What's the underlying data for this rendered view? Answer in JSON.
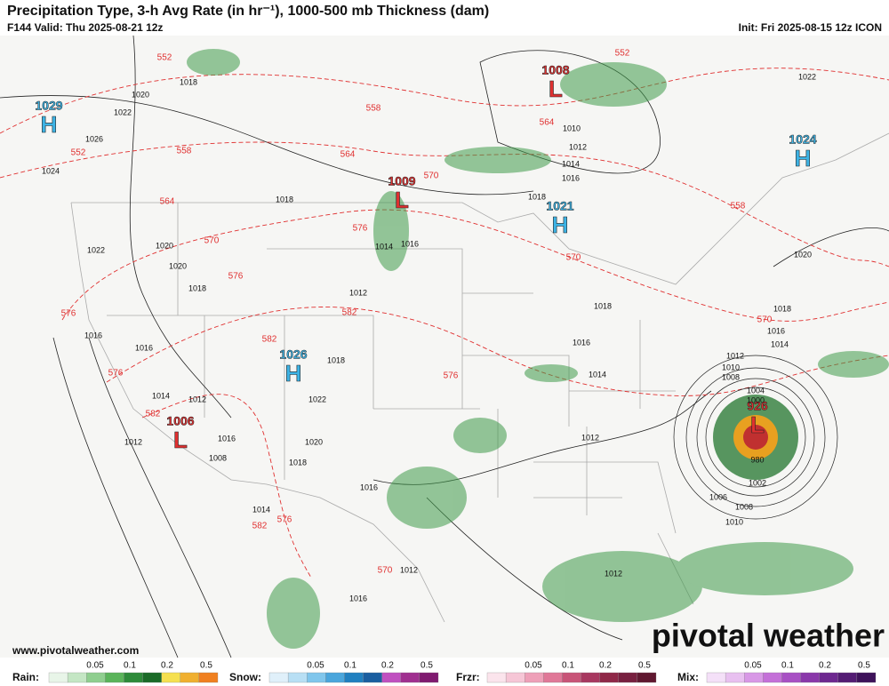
{
  "header": {
    "title": "Precipitation Type, 3-h Avg Rate (in hr⁻¹), 1000-500 mb Thickness (dam)",
    "valid": "F144 Valid: Thu 2025-08-21 12z",
    "init": "Init: Fri 2025-08-15 12z ICON"
  },
  "centers": [
    {
      "letter": "H",
      "value": "1029"
    },
    {
      "letter": "L",
      "value": "1008"
    },
    {
      "letter": "H",
      "value": "1024"
    },
    {
      "letter": "L",
      "value": "1009"
    },
    {
      "letter": "H",
      "value": "1021"
    },
    {
      "letter": "H",
      "value": "1026"
    },
    {
      "letter": "L",
      "value": "1006"
    },
    {
      "letter": "L",
      "value": "926"
    }
  ],
  "isobar_labels": [
    "1018",
    "1020",
    "1022",
    "1026",
    "1024",
    "1010",
    "1012",
    "1014",
    "1016",
    "1018",
    "1022",
    "1018",
    "1020",
    "1022",
    "1020",
    "1018",
    "1016",
    "1014",
    "1012",
    "1018",
    "1016",
    "1016",
    "1018",
    "1016",
    "1014",
    "1014",
    "1012",
    "1022",
    "1012",
    "1016",
    "1008",
    "1020",
    "1018",
    "1016",
    "1014",
    "1012",
    "1012",
    "1016",
    "1012",
    "1020",
    "1018",
    "1016",
    "1014",
    "1012",
    "1010",
    "1008",
    "1004",
    "1000",
    "1006",
    "1008",
    "1010",
    "1002",
    "980"
  ],
  "thickness_labels": [
    "552",
    "552",
    "558",
    "552",
    "558",
    "564",
    "564",
    "570",
    "564",
    "570",
    "576",
    "576",
    "570",
    "558",
    "570",
    "582",
    "576",
    "582",
    "576",
    "576",
    "582",
    "576",
    "582",
    "570"
  ],
  "legend": [
    {
      "label": "Rain:",
      "ticks": [
        "0.05",
        "0.1",
        "0.2",
        "0.5"
      ]
    },
    {
      "label": "Snow:",
      "ticks": [
        "0.05",
        "0.1",
        "0.2",
        "0.5"
      ]
    },
    {
      "label": "Frzr:",
      "ticks": [
        "0.05",
        "0.1",
        "0.2",
        "0.5"
      ]
    },
    {
      "label": "Mix:",
      "ticks": [
        "0.05",
        "0.1",
        "0.2",
        "0.5"
      ]
    }
  ],
  "footer": {
    "website": "www.pivotalweather.com",
    "logo": "pivotal weather"
  }
}
